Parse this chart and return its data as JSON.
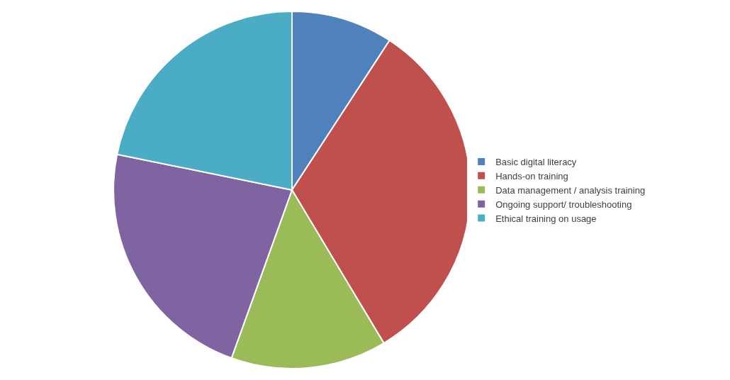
{
  "chart_data": {
    "type": "pie",
    "categories": [
      "Basic digital literacy",
      "Hands-on training",
      "Data management / analysis training",
      "Ongoing support/ troubleshooting",
      "Ethical training on usage"
    ],
    "values": [
      9.2,
      32.2,
      14.1,
      22.7,
      21.8
    ],
    "colors": [
      "#4f81bd",
      "#c0504d",
      "#9bbb59",
      "#8064a2",
      "#4bacc6"
    ],
    "legend": "right"
  }
}
